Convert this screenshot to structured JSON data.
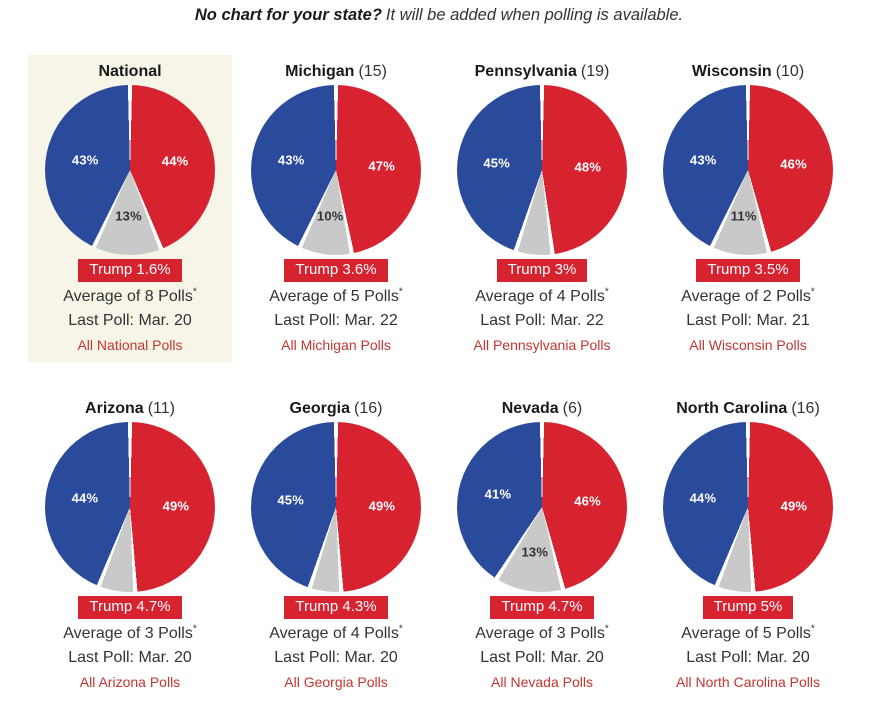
{
  "header": {
    "question": "No chart for your state?",
    "answer": "It will be added when polling is available."
  },
  "footnote_marker": "*",
  "colors": {
    "slices": {
      "Trump": "#D7222F",
      "Other": "#C9C9C9",
      "Biden": "#2A4B9C"
    },
    "slice_label_text": {
      "Trump": "#FFFFFF",
      "Other": "#333333",
      "Biden": "#FFFFFF"
    },
    "badge_bg": "#D7222F",
    "badge_text": "#FFFFFF",
    "link": "#C2362F",
    "highlight_bg": "#F7F4E8"
  },
  "chart_data": [
    {
      "type": "pie",
      "title": "National",
      "ev_display": "",
      "highlighted": true,
      "start_angle_deg": 0,
      "direction": "clockwise",
      "slices": [
        {
          "name": "Trump",
          "value": 44,
          "label": "44%"
        },
        {
          "name": "Other",
          "value": 13,
          "label": "13%"
        },
        {
          "name": "Biden",
          "value": 43,
          "label": "43%"
        }
      ],
      "lead_label": "Trump 1.6%",
      "average_label": "Average of 8 Polls",
      "last_poll_label": "Last Poll: Mar. 20",
      "link_label": "All National Polls"
    },
    {
      "type": "pie",
      "title": "Michigan",
      "ev_display": "(15)",
      "highlighted": false,
      "start_angle_deg": 0,
      "direction": "clockwise",
      "slices": [
        {
          "name": "Trump",
          "value": 47,
          "label": "47%"
        },
        {
          "name": "Other",
          "value": 10,
          "label": "10%"
        },
        {
          "name": "Biden",
          "value": 43,
          "label": "43%"
        }
      ],
      "lead_label": "Trump 3.6%",
      "average_label": "Average of 5 Polls",
      "last_poll_label": "Last Poll: Mar. 22",
      "link_label": "All Michigan Polls"
    },
    {
      "type": "pie",
      "title": "Pennsylvania",
      "ev_display": "(19)",
      "highlighted": false,
      "start_angle_deg": 0,
      "direction": "clockwise",
      "slices": [
        {
          "name": "Trump",
          "value": 48,
          "label": "48%"
        },
        {
          "name": "Other",
          "value": 7,
          "label": ""
        },
        {
          "name": "Biden",
          "value": 45,
          "label": "45%"
        }
      ],
      "lead_label": "Trump 3%",
      "average_label": "Average of 4 Polls",
      "last_poll_label": "Last Poll: Mar. 22",
      "link_label": "All Pennsylvania Polls"
    },
    {
      "type": "pie",
      "title": "Wisconsin",
      "ev_display": "(10)",
      "highlighted": false,
      "start_angle_deg": 0,
      "direction": "clockwise",
      "slices": [
        {
          "name": "Trump",
          "value": 46,
          "label": "46%"
        },
        {
          "name": "Other",
          "value": 11,
          "label": "11%"
        },
        {
          "name": "Biden",
          "value": 43,
          "label": "43%"
        }
      ],
      "lead_label": "Trump 3.5%",
      "average_label": "Average of 2 Polls",
      "last_poll_label": "Last Poll: Mar. 21",
      "link_label": "All Wisconsin Polls"
    },
    {
      "type": "pie",
      "title": "Arizona",
      "ev_display": "(11)",
      "highlighted": false,
      "start_angle_deg": 0,
      "direction": "clockwise",
      "slices": [
        {
          "name": "Trump",
          "value": 49,
          "label": "49%"
        },
        {
          "name": "Other",
          "value": 7,
          "label": ""
        },
        {
          "name": "Biden",
          "value": 44,
          "label": "44%"
        }
      ],
      "lead_label": "Trump 4.7%",
      "average_label": "Average of 3 Polls",
      "last_poll_label": "Last Poll: Mar. 20",
      "link_label": "All Arizona Polls"
    },
    {
      "type": "pie",
      "title": "Georgia",
      "ev_display": "(16)",
      "highlighted": false,
      "start_angle_deg": 0,
      "direction": "clockwise",
      "slices": [
        {
          "name": "Trump",
          "value": 49,
          "label": "49%"
        },
        {
          "name": "Other",
          "value": 6,
          "label": ""
        },
        {
          "name": "Biden",
          "value": 45,
          "label": "45%"
        }
      ],
      "lead_label": "Trump 4.3%",
      "average_label": "Average of 4 Polls",
      "last_poll_label": "Last Poll: Mar. 20",
      "link_label": "All Georgia Polls"
    },
    {
      "type": "pie",
      "title": "Nevada",
      "ev_display": "(6)",
      "highlighted": false,
      "start_angle_deg": 0,
      "direction": "clockwise",
      "slices": [
        {
          "name": "Trump",
          "value": 46,
          "label": "46%"
        },
        {
          "name": "Other",
          "value": 13,
          "label": "13%"
        },
        {
          "name": "Biden",
          "value": 41,
          "label": "41%"
        }
      ],
      "lead_label": "Trump 4.7%",
      "average_label": "Average of 3 Polls",
      "last_poll_label": "Last Poll: Mar. 20",
      "link_label": "All Nevada Polls"
    },
    {
      "type": "pie",
      "title": "North Carolina",
      "ev_display": "(16)",
      "highlighted": false,
      "start_angle_deg": 0,
      "direction": "clockwise",
      "slices": [
        {
          "name": "Trump",
          "value": 49,
          "label": "49%"
        },
        {
          "name": "Other",
          "value": 7,
          "label": ""
        },
        {
          "name": "Biden",
          "value": 44,
          "label": "44%"
        }
      ],
      "lead_label": "Trump 5%",
      "average_label": "Average of 5 Polls",
      "last_poll_label": "Last Poll: Mar. 20",
      "link_label": "All North Carolina Polls"
    }
  ]
}
